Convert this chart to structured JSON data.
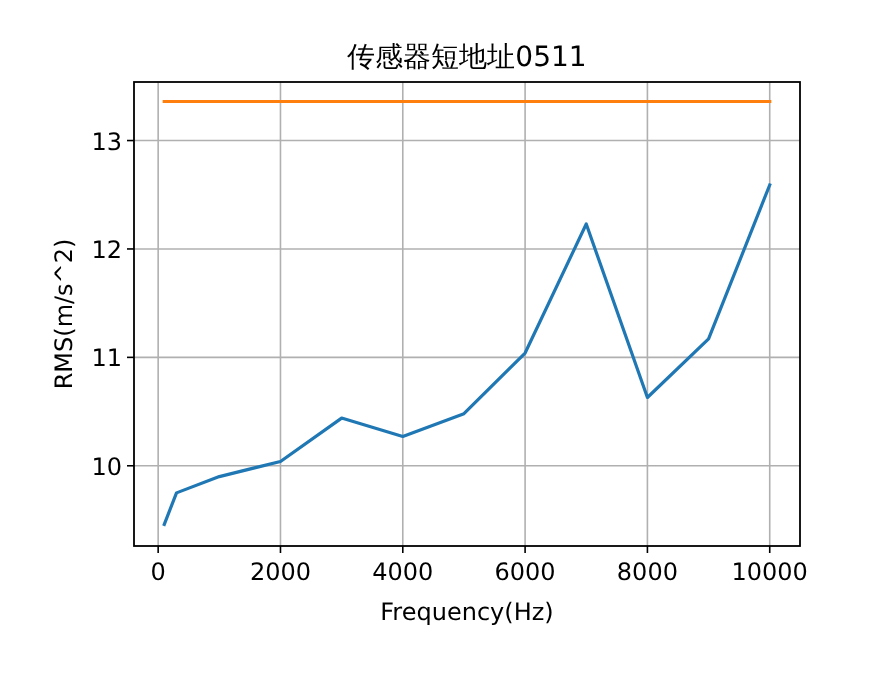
{
  "chart_data": {
    "type": "line",
    "title": "传感器短地址0511",
    "xlabel": "Frequency(Hz)",
    "ylabel": "RMS(m/s^2)",
    "x": [
      100,
      300,
      1000,
      2000,
      3000,
      4000,
      5000,
      6000,
      7000,
      8000,
      9000,
      10000
    ],
    "series": [
      {
        "color": "#1f77b4",
        "values": [
          9.46,
          9.75,
          9.9,
          10.04,
          10.44,
          10.27,
          10.48,
          11.04,
          12.23,
          10.63,
          11.17,
          12.59
        ]
      },
      {
        "color": "#ff7f0e",
        "values": [
          13.36,
          13.36,
          13.36,
          13.36,
          13.36,
          13.36,
          13.36,
          13.36,
          13.36,
          13.36,
          13.36,
          13.36
        ]
      }
    ],
    "xlim": [
      -395,
      10495
    ],
    "ylim": [
      9.26,
      13.54
    ],
    "xticks": [
      0,
      2000,
      4000,
      6000,
      8000,
      10000
    ],
    "yticks": [
      10,
      11,
      12,
      13
    ],
    "grid": true,
    "line_style": "solid",
    "marker": "none"
  }
}
